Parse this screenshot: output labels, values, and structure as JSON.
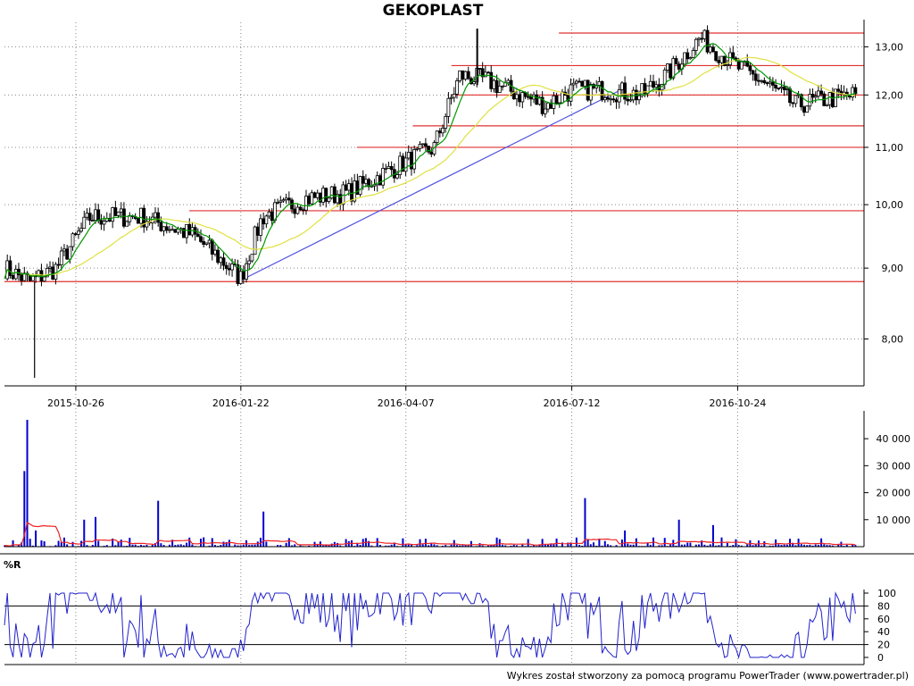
{
  "chart_data": [
    {
      "type": "candlestick",
      "title": "GEKOPLAST",
      "x_ticks": [
        "2015-10-26",
        "2016-01-22",
        "2016-04-07",
        "2016-07-12",
        "2016-10-24"
      ],
      "y_ticks": [
        "8,00",
        "9,00",
        "10,00",
        "11,00",
        "12,00",
        "13,00"
      ],
      "y_scale": "log",
      "ylim": [
        7.4,
        13.6
      ],
      "support_resistance_levels": [
        8.8,
        9.9,
        11.0,
        11.4,
        12.0,
        12.6,
        13.3
      ],
      "trendline": [
        {
          "x": 0.272,
          "y": 8.8
        },
        {
          "x": 0.717,
          "y": 12.1
        }
      ],
      "moving_averages": [
        "short (green)",
        "long (yellow)"
      ],
      "colors": {
        "down": "#000000",
        "up": "#ffffff",
        "ma_short": "#009900",
        "ma_long": "#e0e040",
        "levels": "#e03030",
        "trendline": "#5050e0"
      }
    },
    {
      "type": "bar",
      "name": "volume",
      "y_ticks": [
        "10 000",
        "20 000",
        "30 000",
        "40 000"
      ],
      "ylim": [
        0,
        47000
      ],
      "peaks": [
        {
          "x": 0.022,
          "value": 28000
        },
        {
          "x": 0.025,
          "value": 47000
        },
        {
          "x": 0.035,
          "value": 6000
        },
        {
          "x": 0.094,
          "value": 10000
        },
        {
          "x": 0.105,
          "value": 11000
        },
        {
          "x": 0.18,
          "value": 17000
        },
        {
          "x": 0.3,
          "value": 13000
        },
        {
          "x": 0.675,
          "value": 18000
        },
        {
          "x": 0.722,
          "value": 6000
        },
        {
          "x": 0.785,
          "value": 10000
        },
        {
          "x": 0.826,
          "value": 8000
        }
      ],
      "colors": {
        "bars": "#0000cc",
        "average": "#ee2222"
      }
    },
    {
      "type": "line",
      "name": "%R",
      "label": "%R",
      "y_ticks": [
        "0",
        "20",
        "40",
        "60",
        "80",
        "100"
      ],
      "ylim": [
        0,
        100
      ],
      "reference_lines": [
        20,
        80
      ],
      "colors": {
        "line": "#2222cc"
      }
    }
  ],
  "footer": "Wykres został stworzony za pomocą programu PowerTrader (www.powertrader.pl)"
}
